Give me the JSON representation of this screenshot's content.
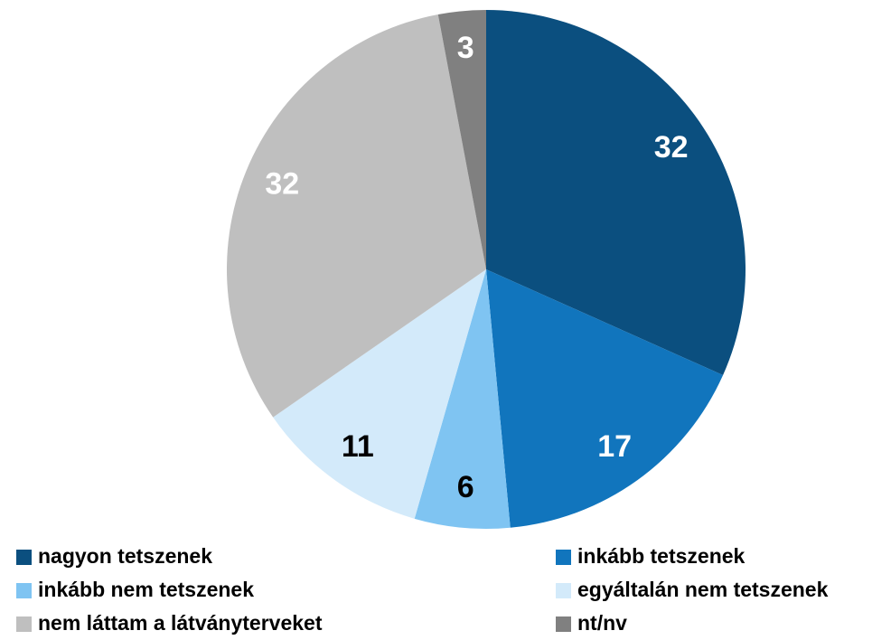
{
  "chart_data": {
    "type": "pie",
    "categories": [
      "nagyon tetszenek",
      "inkább tetszenek",
      "inkább nem tetszenek",
      "egyáltalán nem tetszenek",
      "nem láttam a látványterveket",
      "nt/nv"
    ],
    "values": [
      32,
      17,
      6,
      11,
      32,
      3
    ],
    "colors": [
      "#0b4f7f",
      "#1175bd",
      "#7fc4f2",
      "#d3eafa",
      "#bfbfbf",
      "#808080"
    ],
    "label_colors": [
      "#ffffff",
      "#ffffff",
      "#000000",
      "#000000",
      "#ffffff",
      "#ffffff"
    ],
    "legend": "bottom"
  }
}
